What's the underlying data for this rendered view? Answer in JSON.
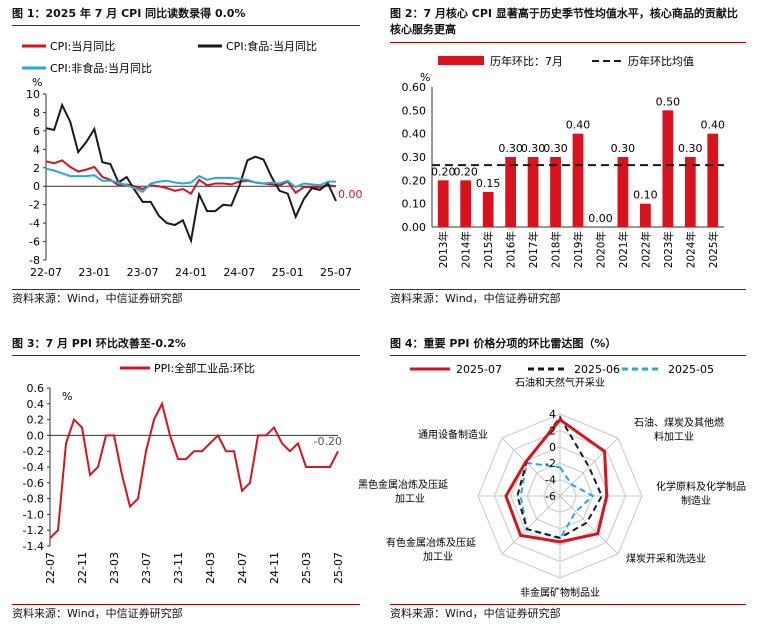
{
  "source_text": "资料来源：Wind，中信证券研究部",
  "colors": {
    "red": "#d7141e",
    "black": "#1a1a1a",
    "blue": "#2aa7e0",
    "grid": "#c8c8c8"
  },
  "chart_data": [
    {
      "type": "line",
      "title": "图 1：2025 年 7 月 CPI 同比读数录得 0.0%",
      "ylabel": "%",
      "ylim": [
        -8,
        10
      ],
      "yticks": [
        10,
        8,
        6,
        4,
        2,
        0,
        -2,
        -4,
        -6,
        -8
      ],
      "x_tick_labels": [
        "22-07",
        "23-01",
        "23-07",
        "24-01",
        "24-07",
        "25-01",
        "25-07"
      ],
      "x_tick_index": [
        0,
        6,
        12,
        18,
        24,
        30,
        36
      ],
      "n_points": 37,
      "end_label": "0.00",
      "series": [
        {
          "name": "CPI:当月同比",
          "color": "#d7141e",
          "values": [
            2.7,
            2.5,
            2.8,
            2.1,
            1.6,
            1.8,
            2.1,
            1.0,
            0.7,
            0.1,
            0.2,
            0.0,
            -0.3,
            0.1,
            0.0,
            -0.2,
            -0.5,
            -0.3,
            -0.8,
            0.7,
            0.1,
            0.3,
            0.3,
            0.2,
            0.5,
            0.6,
            0.4,
            0.3,
            0.2,
            0.1,
            0.5,
            -0.7,
            -0.1,
            -0.1,
            -0.1,
            0.1,
            0.0
          ]
        },
        {
          "name": "CPI:食品:当月同比",
          "color": "#1a1a1a",
          "values": [
            6.3,
            6.1,
            8.8,
            7.0,
            3.7,
            4.8,
            6.2,
            2.6,
            2.4,
            0.4,
            1.0,
            -0.4,
            -1.7,
            -1.7,
            -3.2,
            -4.0,
            -4.2,
            -3.7,
            -5.9,
            -0.9,
            -2.7,
            -2.7,
            -2.0,
            -2.1,
            0.0,
            2.8,
            3.2,
            2.9,
            1.0,
            -0.5,
            -0.8,
            -3.3,
            -1.4,
            -0.2,
            -0.4,
            0.3,
            -1.6
          ]
        },
        {
          "name": "CPI:非食品:当月同比",
          "color": "#2aa7e0",
          "values": [
            1.9,
            1.7,
            1.4,
            1.1,
            1.1,
            1.1,
            1.2,
            0.6,
            0.6,
            0.4,
            0.1,
            -0.2,
            -0.6,
            0.3,
            0.5,
            0.6,
            0.4,
            0.3,
            0.4,
            1.1,
            0.7,
            0.9,
            0.9,
            0.9,
            0.8,
            0.7,
            0.4,
            0.3,
            0.4,
            0.3,
            0.6,
            -0.1,
            0.3,
            0.2,
            0.1,
            0.5,
            0.5
          ]
        }
      ]
    },
    {
      "type": "bar",
      "title": "图 2：7 月核心 CPI 显著高于历史季节性均值水平，核心商品的贡献比核心服务更高",
      "ylabel": "%",
      "ylim": [
        0,
        0.6
      ],
      "yticks": [
        "0.60",
        "0.50",
        "0.40",
        "0.30",
        "0.20",
        "0.10",
        "0.00"
      ],
      "categories": [
        "2013年",
        "2014年",
        "2015年",
        "2016年",
        "2017年",
        "2018年",
        "2019年",
        "2020年",
        "2021年",
        "2022年",
        "2023年",
        "2024年",
        "2025年"
      ],
      "values": [
        0.2,
        0.2,
        0.15,
        0.3,
        0.3,
        0.3,
        0.4,
        0.0,
        0.3,
        0.1,
        0.5,
        0.3,
        0.4
      ],
      "value_labels": [
        "0.20",
        "0.20",
        "0.15",
        "0.30",
        "0.30",
        "0.30",
        "0.40",
        "0.00",
        "0.30",
        "0.10",
        "0.50",
        "0.30",
        "0.40"
      ],
      "bar_name": "历年环比：7月",
      "avg_name": "历年环比均值",
      "avg_value": 0.265
    },
    {
      "type": "line",
      "title": "图 3：7 月 PPI 环比改善至-0.2%",
      "ylabel": "%",
      "ylim": [
        -1.4,
        0.6
      ],
      "yticks": [
        "0.6",
        "0.4",
        "0.2",
        "0.0",
        "-0.2",
        "-0.4",
        "-0.6",
        "-0.8",
        "-1.0",
        "-1.2",
        "-1.4"
      ],
      "x_tick_labels": [
        "22-07",
        "22-11",
        "23-03",
        "23-07",
        "23-11",
        "24-03",
        "24-07",
        "24-11",
        "25-03",
        "25-07"
      ],
      "x_tick_index": [
        0,
        4,
        8,
        12,
        16,
        20,
        24,
        28,
        32,
        36
      ],
      "n_points": 37,
      "end_label": "-0.20",
      "series": [
        {
          "name": "PPI:全部工业品:环比",
          "color": "#d7141e",
          "values": [
            -1.3,
            -1.2,
            -0.1,
            0.2,
            0.1,
            -0.5,
            -0.4,
            0.0,
            0.0,
            -0.5,
            -0.9,
            -0.8,
            -0.2,
            0.2,
            0.4,
            0.0,
            -0.3,
            -0.3,
            -0.2,
            -0.2,
            -0.1,
            0.0,
            -0.2,
            -0.2,
            -0.7,
            -0.6,
            0.0,
            0.0,
            0.1,
            -0.1,
            -0.2,
            -0.1,
            -0.4,
            -0.4,
            -0.4,
            -0.4,
            -0.2
          ]
        }
      ]
    },
    {
      "type": "radar",
      "title": "图 4：重要 PPI 价格分项的环比雷达图（%）",
      "rlim": [
        -6,
        4
      ],
      "rticks": [
        "4",
        "2",
        "0",
        "-2",
        "-4",
        "-6"
      ],
      "axes": [
        [
          "石油和天然气开采业"
        ],
        [
          "石油、煤炭及其他燃",
          "料加工业"
        ],
        [
          "化学原料及化学制品",
          "制造业"
        ],
        [
          "煤炭开采和洗选业"
        ],
        [
          "非金属矿物制品业"
        ],
        [
          "有色金属冶炼及压延",
          "加工业"
        ],
        [
          "黑色金属冶炼及压延",
          "加工业"
        ],
        [
          "通用设备制造业"
        ]
      ],
      "series": [
        {
          "name": "2025-07",
          "color": "#d7141e",
          "style": "solid",
          "values": [
            3.3,
            1.7,
            -0.3,
            0.5,
            -0.4,
            0.8,
            0.6,
            -0.1
          ]
        },
        {
          "name": "2025-06",
          "color": "#1a1a1a",
          "style": "dashed",
          "values": [
            3.6,
            -1.0,
            -0.9,
            -1.4,
            -0.9,
            -0.3,
            -0.8,
            -0.2
          ]
        },
        {
          "name": "2025-05",
          "color": "#2aa7e0",
          "style": "dashed",
          "values": [
            -2.5,
            -4.0,
            -2.0,
            -3.3,
            -0.8,
            -0.3,
            -1.2,
            -0.3
          ]
        }
      ]
    }
  ]
}
